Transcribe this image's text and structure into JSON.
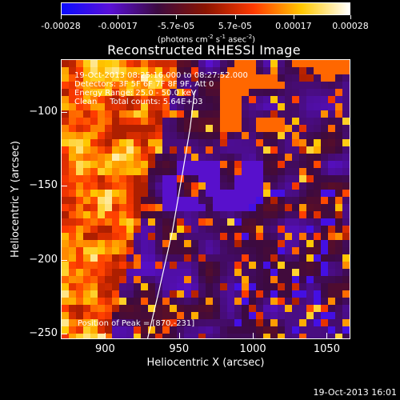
{
  "colorbar": {
    "tick_labels": [
      "-0.00028",
      "-0.00017",
      "-5.7e-05",
      "5.7e-05",
      "0.00017",
      "0.00028"
    ],
    "tick_values": [
      -0.00028,
      -0.00017,
      -5.7e-05,
      5.7e-05,
      0.00017,
      0.00028
    ],
    "range": [
      -0.00028,
      0.00028
    ],
    "colors": [
      "#0a0cff",
      "#5a10d8",
      "#3c0a40",
      "#8a1400",
      "#ff3a00",
      "#ffc800",
      "#ffffff"
    ],
    "units_prefix": "(photons cm",
    "units_sup1": "-2",
    "units_mid": " s",
    "units_sup2": "-1",
    "units_mid2": " asec",
    "units_sup3": "-2",
    "units_suffix": ")"
  },
  "annotations": {
    "time_range": "19-Oct-2013 08:25:16.000 to 08:27:52.000",
    "detectors": "Detectors: 3F 5F 6F 7F 8F 9F, Att 0",
    "energy": "Energy Range: 25.0 - 50.0 keV",
    "clean": "Clean     Total counts: 5.64E+03",
    "peak": "Position of Peak = [870,-231]"
  },
  "footer": {
    "timestamp": "19-Oct-2013 16:01"
  },
  "chart_data": {
    "type": "heatmap",
    "title": "Reconstructed RHESSI Image",
    "xlabel": "Heliocentric X (arcsec)",
    "ylabel": "Heliocentric Y (arcsec)",
    "xlim": [
      870,
      1066
    ],
    "ylim": [
      -254,
      -64
    ],
    "x_ticks": [
      900,
      950,
      1000,
      1050
    ],
    "y_ticks": [
      -100,
      -150,
      -200,
      -250
    ],
    "limb_curve": [
      [
        928,
        -254
      ],
      [
        936,
        -220
      ],
      [
        945,
        -180
      ],
      [
        952,
        -140
      ],
      [
        957,
        -110
      ],
      [
        960,
        -85
      ]
    ],
    "peak_position": [
      870,
      -231
    ],
    "grid": false,
    "legend": "none"
  }
}
